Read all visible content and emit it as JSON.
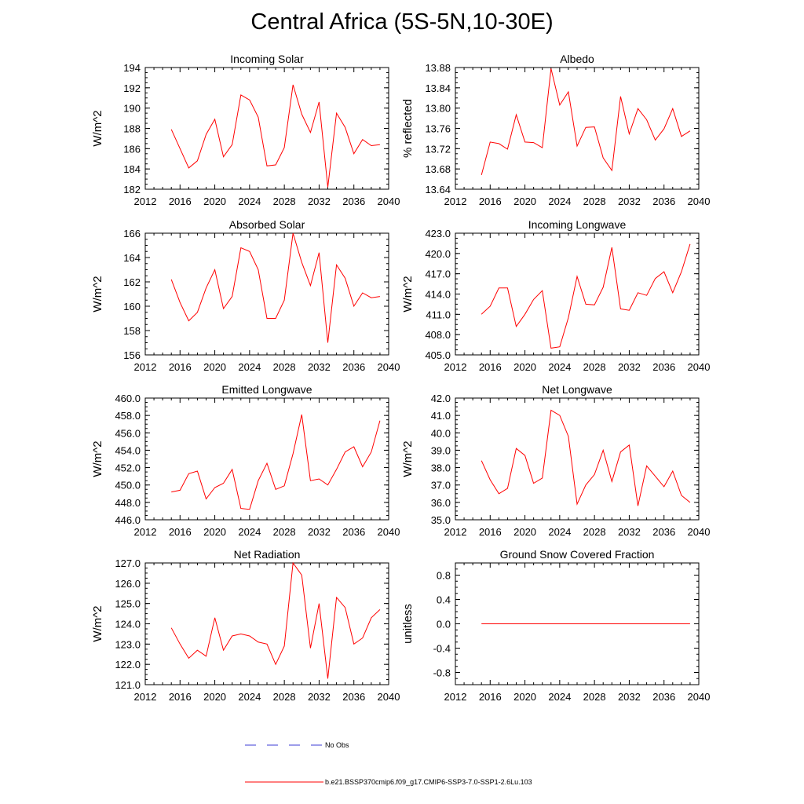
{
  "title": "Central Africa (5S-5N,10-30E)",
  "colors": {
    "model": "#ff0000",
    "obs": "#3b3bd6",
    "axis": "#000000"
  },
  "legend": {
    "obs_label": "No Obs",
    "model_label": "b.e21.BSSP370cmip6.f09_g17.CMIP6-SSP3-7.0-SSP1-2.6Lu.103"
  },
  "chart_data": [
    {
      "type": "line",
      "title": "Incoming Solar",
      "ylabel": "W/m^2",
      "xlim": [
        2012,
        2040
      ],
      "ylim": [
        182,
        194
      ],
      "xticks": [
        "2012",
        "2016",
        "2020",
        "2024",
        "2028",
        "2032",
        "2036",
        "2040"
      ],
      "yticks": [
        "182",
        "184",
        "186",
        "188",
        "190",
        "192",
        "194"
      ],
      "x": [
        2015,
        2016,
        2017,
        2018,
        2019,
        2020,
        2021,
        2022,
        2023,
        2024,
        2025,
        2026,
        2027,
        2028,
        2029,
        2030,
        2031,
        2032,
        2033,
        2034,
        2035,
        2036,
        2037,
        2038,
        2039
      ],
      "series": [
        {
          "values": [
            187.9,
            186.0,
            184.1,
            184.8,
            187.4,
            188.9,
            185.2,
            186.4,
            191.3,
            190.8,
            189.1,
            184.3,
            184.4,
            186.1,
            192.3,
            189.4,
            187.6,
            190.6,
            182.2,
            189.5,
            188.1,
            185.5,
            186.9,
            186.3,
            186.4
          ]
        }
      ]
    },
    {
      "type": "line",
      "title": "Albedo",
      "ylabel": "% reflected",
      "xlim": [
        2012,
        2040
      ],
      "ylim": [
        13.64,
        13.88
      ],
      "xticks": [
        "2012",
        "2016",
        "2020",
        "2024",
        "2028",
        "2032",
        "2036",
        "2040"
      ],
      "yticks": [
        "13.64",
        "13.68",
        "13.72",
        "13.76",
        "13.80",
        "13.84",
        "13.88"
      ],
      "x": [
        2015,
        2016,
        2017,
        2018,
        2019,
        2020,
        2021,
        2022,
        2023,
        2024,
        2025,
        2026,
        2027,
        2028,
        2029,
        2030,
        2031,
        2032,
        2033,
        2034,
        2035,
        2036,
        2037,
        2038,
        2039
      ],
      "series": [
        {
          "values": [
            13.668,
            13.733,
            13.73,
            13.719,
            13.787,
            13.733,
            13.732,
            13.722,
            13.878,
            13.806,
            13.832,
            13.725,
            13.762,
            13.763,
            13.702,
            13.677,
            13.823,
            13.749,
            13.799,
            13.777,
            13.737,
            13.759,
            13.799,
            13.744,
            13.755
          ]
        }
      ]
    },
    {
      "type": "line",
      "title": "Absorbed Solar",
      "ylabel": "W/m^2",
      "xlim": [
        2012,
        2040
      ],
      "ylim": [
        156,
        166
      ],
      "xticks": [
        "2012",
        "2016",
        "2020",
        "2024",
        "2028",
        "2032",
        "2036",
        "2040"
      ],
      "yticks": [
        "156",
        "158",
        "160",
        "162",
        "164",
        "166"
      ],
      "x": [
        2015,
        2016,
        2017,
        2018,
        2019,
        2020,
        2021,
        2022,
        2023,
        2024,
        2025,
        2026,
        2027,
        2028,
        2029,
        2030,
        2031,
        2032,
        2033,
        2034,
        2035,
        2036,
        2037,
        2038,
        2039
      ],
      "series": [
        {
          "values": [
            162.2,
            160.3,
            158.8,
            159.5,
            161.5,
            163.0,
            159.8,
            160.8,
            164.8,
            164.5,
            163.0,
            159.0,
            159.0,
            160.5,
            166.0,
            163.6,
            161.7,
            164.4,
            157.0,
            163.4,
            162.3,
            160.0,
            161.1,
            160.7,
            160.8
          ]
        }
      ]
    },
    {
      "type": "line",
      "title": "Incoming Longwave",
      "ylabel": "W/m^2",
      "xlim": [
        2012,
        2040
      ],
      "ylim": [
        405.0,
        423.0
      ],
      "xticks": [
        "2012",
        "2016",
        "2020",
        "2024",
        "2028",
        "2032",
        "2036",
        "2040"
      ],
      "yticks": [
        "405.0",
        "408.0",
        "411.0",
        "414.0",
        "417.0",
        "420.0",
        "423.0"
      ],
      "x": [
        2015,
        2016,
        2017,
        2018,
        2019,
        2020,
        2021,
        2022,
        2023,
        2024,
        2025,
        2026,
        2027,
        2028,
        2029,
        2030,
        2031,
        2032,
        2033,
        2034,
        2035,
        2036,
        2037,
        2038,
        2039
      ],
      "series": [
        {
          "values": [
            411.0,
            412.2,
            414.9,
            414.9,
            409.2,
            411.0,
            413.2,
            414.5,
            406.0,
            406.2,
            410.5,
            416.6,
            412.5,
            412.4,
            415.0,
            420.9,
            411.8,
            411.6,
            414.2,
            413.8,
            416.3,
            417.3,
            414.2,
            417.3,
            421.4
          ]
        }
      ]
    },
    {
      "type": "line",
      "title": "Emitted Longwave",
      "ylabel": "W/m^2",
      "xlim": [
        2012,
        2040
      ],
      "ylim": [
        446.0,
        460.0
      ],
      "xticks": [
        "2012",
        "2016",
        "2020",
        "2024",
        "2028",
        "2032",
        "2036",
        "2040"
      ],
      "yticks": [
        "446.0",
        "448.0",
        "450.0",
        "452.0",
        "454.0",
        "456.0",
        "458.0",
        "460.0"
      ],
      "x": [
        2015,
        2016,
        2017,
        2018,
        2019,
        2020,
        2021,
        2022,
        2023,
        2024,
        2025,
        2026,
        2027,
        2028,
        2029,
        2030,
        2031,
        2032,
        2033,
        2034,
        2035,
        2036,
        2037,
        2038,
        2039
      ],
      "series": [
        {
          "values": [
            449.2,
            449.4,
            451.3,
            451.6,
            448.4,
            449.7,
            450.2,
            451.8,
            447.3,
            447.2,
            450.5,
            452.5,
            449.5,
            449.9,
            453.6,
            458.1,
            450.5,
            450.7,
            450.0,
            451.8,
            453.8,
            454.4,
            452.1,
            453.8,
            457.4
          ]
        }
      ]
    },
    {
      "type": "line",
      "title": "Net Longwave",
      "ylabel": "W/m^2",
      "xlim": [
        2012,
        2040
      ],
      "ylim": [
        35.0,
        42.0
      ],
      "xticks": [
        "2012",
        "2016",
        "2020",
        "2024",
        "2028",
        "2032",
        "2036",
        "2040"
      ],
      "yticks": [
        "35.0",
        "36.0",
        "37.0",
        "38.0",
        "39.0",
        "40.0",
        "41.0",
        "42.0"
      ],
      "x": [
        2015,
        2016,
        2017,
        2018,
        2019,
        2020,
        2021,
        2022,
        2023,
        2024,
        2025,
        2026,
        2027,
        2028,
        2029,
        2030,
        2031,
        2032,
        2033,
        2034,
        2035,
        2036,
        2037,
        2038,
        2039
      ],
      "series": [
        {
          "values": [
            38.4,
            37.3,
            36.5,
            36.8,
            39.1,
            38.7,
            37.1,
            37.4,
            41.3,
            41.0,
            39.8,
            35.9,
            37.0,
            37.6,
            39.0,
            37.2,
            38.9,
            39.3,
            35.8,
            38.1,
            37.5,
            36.9,
            37.8,
            36.4,
            36.0
          ]
        }
      ]
    },
    {
      "type": "line",
      "title": "Net Radiation",
      "ylabel": "W/m^2",
      "xlim": [
        2012,
        2040
      ],
      "ylim": [
        121.0,
        127.0
      ],
      "xticks": [
        "2012",
        "2016",
        "2020",
        "2024",
        "2028",
        "2032",
        "2036",
        "2040"
      ],
      "yticks": [
        "121.0",
        "122.0",
        "123.0",
        "124.0",
        "125.0",
        "126.0",
        "127.0"
      ],
      "x": [
        2015,
        2016,
        2017,
        2018,
        2019,
        2020,
        2021,
        2022,
        2023,
        2024,
        2025,
        2026,
        2027,
        2028,
        2029,
        2030,
        2031,
        2032,
        2033,
        2034,
        2035,
        2036,
        2037,
        2038,
        2039
      ],
      "series": [
        {
          "values": [
            123.8,
            123.0,
            122.3,
            122.7,
            122.4,
            124.3,
            122.7,
            123.4,
            123.5,
            123.4,
            123.1,
            123.0,
            122.0,
            122.9,
            127.0,
            126.4,
            122.8,
            125.0,
            121.3,
            125.3,
            124.8,
            123.0,
            123.3,
            124.3,
            124.7
          ]
        }
      ]
    },
    {
      "type": "line",
      "title": "Ground Snow Covered Fraction",
      "ylabel": "unitless",
      "xlim": [
        2012,
        2040
      ],
      "ylim": [
        -1.0,
        1.0
      ],
      "xticks": [
        "2012",
        "2016",
        "2020",
        "2024",
        "2028",
        "2032",
        "2036",
        "2040"
      ],
      "yticks": [
        "-0.8",
        "-0.4",
        "0.0",
        "0.4",
        "0.8"
      ],
      "ytick_values": [
        -0.8,
        -0.4,
        0.0,
        0.4,
        0.8
      ],
      "x": [
        2015,
        2016,
        2017,
        2018,
        2019,
        2020,
        2021,
        2022,
        2023,
        2024,
        2025,
        2026,
        2027,
        2028,
        2029,
        2030,
        2031,
        2032,
        2033,
        2034,
        2035,
        2036,
        2037,
        2038,
        2039
      ],
      "series": [
        {
          "values": [
            0,
            0,
            0,
            0,
            0,
            0,
            0,
            0,
            0,
            0,
            0,
            0,
            0,
            0,
            0,
            0,
            0,
            0,
            0,
            0,
            0,
            0,
            0,
            0,
            0
          ]
        }
      ]
    }
  ]
}
